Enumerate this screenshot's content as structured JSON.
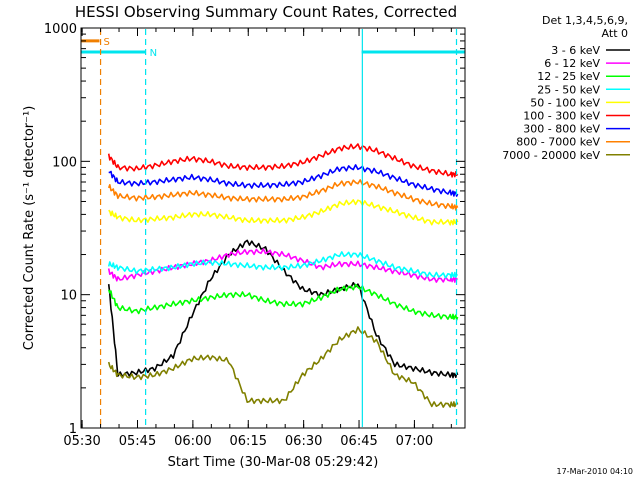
{
  "chart_data": {
    "type": "line",
    "title": "HESSI Observing Summary Count Rates, Corrected",
    "xlabel": "Start Time (30-Mar-08 05:29:42)",
    "ylabel": "Corrected Count Rate (s⁻¹ detector⁻¹)",
    "x_unit": "minutes after 05:29:42",
    "xlim": [
      0,
      104
    ],
    "ylim": [
      1,
      1000
    ],
    "yscale": "log",
    "x_ticks": [
      "05:30",
      "05:45",
      "06:00",
      "06:15",
      "06:30",
      "06:45",
      "07:00"
    ],
    "x_tick_minutes": [
      0.3,
      15.3,
      30.3,
      45.3,
      60.3,
      75.3,
      90.3
    ],
    "y_ticks": [
      "1",
      "10",
      "100",
      "1000"
    ],
    "y_tick_values": [
      1,
      10,
      100,
      1000
    ],
    "legend": {
      "header": [
        "Det 1,3,4,5,6,9,",
        "Att 0"
      ],
      "position": "right"
    },
    "flags": [
      {
        "label": "S",
        "color": "#f07f00",
        "x_start": 0,
        "x_end": 5,
        "level": 800
      },
      {
        "label": "N",
        "color": "#00e5ee",
        "x_start": 0,
        "x_end": 17.5,
        "level": 660
      },
      {
        "label": "",
        "color": "#00e5ee",
        "x_start": 76,
        "x_end": 104,
        "level": 660
      }
    ],
    "vlines": [
      {
        "x": 5.3,
        "color": "#f07f00",
        "style": "dashed"
      },
      {
        "x": 17.5,
        "color": "#00e5ee",
        "style": "dashed"
      },
      {
        "x": 76.2,
        "color": "#00e5ee",
        "style": "solid"
      },
      {
        "x": 101.7,
        "color": "#00e5ee",
        "style": "dashed"
      }
    ],
    "x": [
      7.5,
      10,
      15,
      20,
      25,
      30,
      35,
      40,
      45,
      50,
      55,
      60,
      65,
      70,
      75,
      80,
      85,
      90,
      95,
      100,
      102
    ],
    "series": [
      {
        "name": "3 - 6 keV",
        "color": "#000000",
        "values": [
          12,
          2.5,
          2.6,
          2.8,
          3.5,
          7,
          13,
          20,
          25,
          22,
          15,
          11,
          10,
          11,
          12,
          5,
          3,
          2.8,
          2.6,
          2.5,
          2.5
        ]
      },
      {
        "name": "6 - 12 keV",
        "color": "#ff00ff",
        "values": [
          15,
          13,
          14,
          15,
          16,
          17,
          18,
          20,
          21,
          21,
          20,
          18,
          16,
          17,
          17,
          16,
          15,
          14,
          13,
          13,
          13
        ]
      },
      {
        "name": "12 - 25 keV",
        "color": "#00ff00",
        "values": [
          11,
          8,
          7.5,
          8,
          8.5,
          9,
          9.5,
          10,
          10,
          9,
          8.5,
          8.5,
          9.5,
          11,
          11.5,
          10,
          8.5,
          7.5,
          7,
          6.8,
          6.8
        ]
      },
      {
        "name": "25 - 50 keV",
        "color": "#00ffff",
        "values": [
          17,
          16,
          15,
          15.5,
          16,
          17,
          17.5,
          17,
          16.5,
          16,
          16,
          16.5,
          18,
          20,
          20,
          18,
          16,
          15,
          14,
          14,
          14
        ]
      },
      {
        "name": "50 - 100 keV",
        "color": "#ffff00",
        "values": [
          42,
          38,
          36,
          37,
          38,
          40,
          40,
          38,
          36,
          36,
          36,
          38,
          42,
          48,
          50,
          46,
          42,
          38,
          35,
          35,
          35
        ]
      },
      {
        "name": "100 - 300 keV",
        "color": "#ff0000",
        "values": [
          110,
          90,
          88,
          93,
          100,
          105,
          100,
          92,
          90,
          90,
          92,
          98,
          110,
          125,
          130,
          120,
          105,
          92,
          85,
          80,
          80
        ]
      },
      {
        "name": "300 - 800 keV",
        "color": "#0000ff",
        "values": [
          85,
          70,
          68,
          70,
          73,
          76,
          73,
          68,
          66,
          66,
          67,
          70,
          78,
          88,
          90,
          84,
          75,
          67,
          62,
          58,
          57
        ]
      },
      {
        "name": "800 - 7000 keV",
        "color": "#ff8000",
        "values": [
          65,
          55,
          53,
          54,
          56,
          58,
          56,
          53,
          52,
          52,
          52,
          54,
          60,
          68,
          70,
          65,
          58,
          52,
          48,
          46,
          45
        ]
      },
      {
        "name": "7000 - 20000 keV",
        "color": "#808000",
        "values": [
          3,
          2.5,
          2.4,
          2.5,
          2.8,
          3.3,
          3.4,
          3.2,
          1.6,
          1.6,
          1.6,
          2.5,
          3.3,
          4.6,
          5.5,
          4.5,
          2.5,
          2.2,
          1.5,
          1.5,
          1.5
        ]
      }
    ]
  },
  "footer": {
    "timestamp": "17-Mar-2010 04:10"
  }
}
